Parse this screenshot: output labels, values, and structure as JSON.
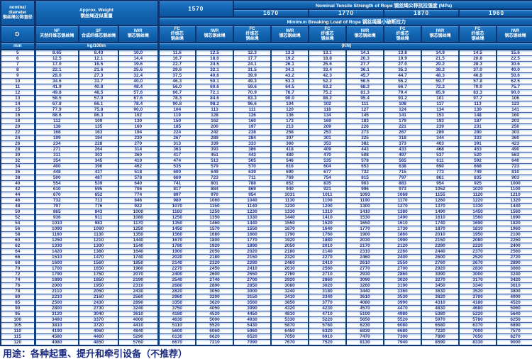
{
  "table": {
    "corner": {
      "nominal_diameter": "nominal\ndiameter\n钢丝绳公称直径",
      "d": "D",
      "mm": "mm"
    },
    "weight": {
      "title": "Approx. Weight\n钢丝绳近似重量",
      "unit": "kg/100m",
      "cols": [
        "NF\n天然纤维芯钢丝绳",
        "SF\n合成纤维芯钢丝绳",
        "IWR\n钢芯钢丝绳"
      ]
    },
    "strength": {
      "title": "Nominal Tensile Strength of Rope 钢丝绳公称抗拉强度 (MPa)",
      "breaking_title": "Minimun Breaking Load of Rope 钢丝绳最小破断拉力",
      "unit": "(KN)",
      "grades": [
        "1570",
        "1670",
        "1770",
        "1870",
        "1960"
      ],
      "pair": [
        "FC\n纤维芯\n钢丝绳",
        "IWR\n钢芯钢丝绳"
      ]
    },
    "columns": [
      "D mm",
      "NF kg/100m",
      "SF kg/100m",
      "IWR kg/100m",
      "1570 FC",
      "1570 IWR",
      "1670 FC",
      "1670 IWR",
      "1770 FC",
      "1770 IWR",
      "1870 FC",
      "1870 IWR",
      "1960 FC",
      "1960 IWR"
    ],
    "rows": [
      [
        "5",
        "8.65",
        "8.43",
        "10.0",
        "11.6",
        "12.5",
        "12.3",
        "13.3",
        "13.1",
        "14.1",
        "13.8",
        "14.9",
        "14.5",
        "15.6"
      ],
      [
        "6",
        "12.5",
        "12.1",
        "14.4",
        "16.7",
        "18.0",
        "17.7",
        "19.2",
        "18.8",
        "20.3",
        "19.9",
        "21.5",
        "20.8",
        "22.5"
      ],
      [
        "7",
        "17.0",
        "16.5",
        "19.6",
        "22.7",
        "24.5",
        "24.1",
        "26.1",
        "25.6",
        "27.7",
        "27.0",
        "29.2",
        "28.3",
        "30.6"
      ],
      [
        "8",
        "22.1",
        "21.6",
        "25.6",
        "29.6",
        "32.1",
        "31.5",
        "34.1",
        "33.4",
        "36.1",
        "35.3",
        "38.2",
        "37.0",
        "40.0"
      ],
      [
        "9",
        "28.0",
        "27.3",
        "32.4",
        "37.5",
        "40.6",
        "39.9",
        "43.2",
        "42.3",
        "45.7",
        "44.7",
        "48.3",
        "46.8",
        "50.6"
      ],
      [
        "10",
        "34.6",
        "33.7",
        "40.0",
        "46.3",
        "50.1",
        "49.3",
        "53.3",
        "52.2",
        "56.5",
        "55.2",
        "59.7",
        "57.8",
        "62.5"
      ],
      [
        "11",
        "41.9",
        "40.8",
        "48.4",
        "56.0",
        "60.6",
        "59.6",
        "64.5",
        "63.2",
        "68.3",
        "66.7",
        "72.2",
        "70.0",
        "75.7"
      ],
      [
        "12",
        "49.8",
        "48.5",
        "57.6",
        "66.7",
        "72.1",
        "70.9",
        "76.7",
        "75.2",
        "81.3",
        "79.4",
        "85.9",
        "83.3",
        "90.0"
      ],
      [
        "13",
        "58.5",
        "57.0",
        "67.6",
        "78.3",
        "84.6",
        "83.3",
        "90.0",
        "88.2",
        "95.4",
        "93.2",
        "101",
        "97.7",
        "106"
      ],
      [
        "14",
        "67.8",
        "66.1",
        "78.4",
        "90.8",
        "98.2",
        "96.6",
        "104",
        "102",
        "111",
        "108",
        "117",
        "113",
        "123"
      ],
      [
        "15",
        "77.9",
        "75.8",
        "90.0",
        "104",
        "113",
        "111",
        "120",
        "118",
        "127",
        "124",
        "134",
        "130",
        "141"
      ],
      [
        "16",
        "88.6",
        "86.3",
        "102",
        "119",
        "128",
        "126",
        "136",
        "134",
        "145",
        "141",
        "153",
        "148",
        "160"
      ],
      [
        "18",
        "112",
        "109",
        "130",
        "150",
        "162",
        "160",
        "173",
        "169",
        "183",
        "179",
        "193",
        "187",
        "203"
      ],
      [
        "20",
        "138",
        "135",
        "160",
        "185",
        "200",
        "197",
        "213",
        "209",
        "226",
        "221",
        "239",
        "231",
        "250"
      ],
      [
        "22",
        "168",
        "163",
        "194",
        "224",
        "242",
        "238",
        "258",
        "253",
        "273",
        "267",
        "289",
        "280",
        "303"
      ],
      [
        "24",
        "199",
        "194",
        "230",
        "267",
        "289",
        "284",
        "307",
        "301",
        "325",
        "318",
        "344",
        "333",
        "360"
      ],
      [
        "26",
        "234",
        "228",
        "270",
        "313",
        "339",
        "333",
        "360",
        "353",
        "382",
        "373",
        "403",
        "391",
        "423"
      ],
      [
        "28",
        "271",
        "264",
        "314",
        "363",
        "393",
        "386",
        "418",
        "409",
        "443",
        "433",
        "468",
        "453",
        "490"
      ],
      [
        "30",
        "311",
        "303",
        "360",
        "417",
        "451",
        "443",
        "480",
        "470",
        "508",
        "497",
        "537",
        "520",
        "563"
      ],
      [
        "32",
        "354",
        "345",
        "410",
        "474",
        "513",
        "505",
        "546",
        "535",
        "578",
        "565",
        "611",
        "592",
        "640"
      ],
      [
        "34",
        "400",
        "390",
        "462",
        "535",
        "579",
        "570",
        "616",
        "604",
        "653",
        "638",
        "690",
        "668",
        "723"
      ],
      [
        "36",
        "448",
        "437",
        "518",
        "600",
        "649",
        "639",
        "690",
        "677",
        "732",
        "715",
        "773",
        "749",
        "810"
      ],
      [
        "38",
        "500",
        "487",
        "578",
        "669",
        "723",
        "711",
        "769",
        "754",
        "815",
        "797",
        "861",
        "835",
        "903"
      ],
      [
        "40",
        "554",
        "539",
        "640",
        "741",
        "801",
        "788",
        "852",
        "835",
        "903",
        "883",
        "954",
        "925",
        "1000"
      ],
      [
        "42",
        "610",
        "595",
        "706",
        "817",
        "884",
        "869",
        "940",
        "921",
        "996",
        "973",
        "1052",
        "1020",
        "1100"
      ],
      [
        "44",
        "670",
        "652",
        "774",
        "897",
        "970",
        "954",
        "1031",
        "1011",
        "1093",
        "1068",
        "1155",
        "1120",
        "1210"
      ],
      [
        "46",
        "732",
        "713",
        "846",
        "980",
        "1060",
        "1040",
        "1130",
        "1100",
        "1190",
        "1170",
        "1260",
        "1220",
        "1320"
      ],
      [
        "48",
        "797",
        "776",
        "922",
        "1070",
        "1150",
        "1140",
        "1230",
        "1200",
        "1300",
        "1270",
        "1370",
        "1330",
        "1440"
      ],
      [
        "50",
        "865",
        "843",
        "1000",
        "1160",
        "1250",
        "1230",
        "1330",
        "1310",
        "1410",
        "1380",
        "1490",
        "1450",
        "1560"
      ],
      [
        "52",
        "936",
        "911",
        "1080",
        "1250",
        "1350",
        "1330",
        "1440",
        "1410",
        "1530",
        "1490",
        "1610",
        "1560",
        "1690"
      ],
      [
        "54",
        "1010",
        "983",
        "1170",
        "1350",
        "1460",
        "1440",
        "1550",
        "1520",
        "1650",
        "1610",
        "1740",
        "1690",
        "1820"
      ],
      [
        "56",
        "1090",
        "1060",
        "1250",
        "1450",
        "1570",
        "1550",
        "1670",
        "1640",
        "1770",
        "1730",
        "1870",
        "1810",
        "1960"
      ],
      [
        "58",
        "1160",
        "1130",
        "1350",
        "1560",
        "1680",
        "1660",
        "1790",
        "1760",
        "1900",
        "1860",
        "2010",
        "1950",
        "2100"
      ],
      [
        "60",
        "1250",
        "1210",
        "1440",
        "1670",
        "1800",
        "1770",
        "1920",
        "1880",
        "2030",
        "1990",
        "2150",
        "2080",
        "2250"
      ],
      [
        "62",
        "1330",
        "1300",
        "1540",
        "1780",
        "1920",
        "1890",
        "2050",
        "2010",
        "2170",
        "2120",
        "2290",
        "2220",
        "2400"
      ],
      [
        "64",
        "1420",
        "1380",
        "1640",
        "1900",
        "2050",
        "2020",
        "2180",
        "2140",
        "2310",
        "2260",
        "2440",
        "2370",
        "2560"
      ],
      [
        "66",
        "1510",
        "1470",
        "1740",
        "2020",
        "2180",
        "2150",
        "2320",
        "2270",
        "2460",
        "2400",
        "2600",
        "2520",
        "2720"
      ],
      [
        "68",
        "1600",
        "1560",
        "1850",
        "2140",
        "2320",
        "2280",
        "2460",
        "2410",
        "2610",
        "2550",
        "2760",
        "2670",
        "2890"
      ],
      [
        "70",
        "1700",
        "1650",
        "1960",
        "2270",
        "2450",
        "2410",
        "2610",
        "2560",
        "2770",
        "2700",
        "2920",
        "2830",
        "3060"
      ],
      [
        "72",
        "1790",
        "1750",
        "2070",
        "2400",
        "2600",
        "2550",
        "2760",
        "2710",
        "2930",
        "2860",
        "3090",
        "3000",
        "3240"
      ],
      [
        "74",
        "1890",
        "1850",
        "2190",
        "2540",
        "2740",
        "2700",
        "2920",
        "2860",
        "3090",
        "3020",
        "3270",
        "3170",
        "3420"
      ],
      [
        "76",
        "2000",
        "1950",
        "2310",
        "2680",
        "2890",
        "2850",
        "3080",
        "3020",
        "3260",
        "3190",
        "3450",
        "3340",
        "3610"
      ],
      [
        "78",
        "2110",
        "2050",
        "2430",
        "2820",
        "3050",
        "3000",
        "3240",
        "3180",
        "3440",
        "3360",
        "3630",
        "3520",
        "3800"
      ],
      [
        "80",
        "2210",
        "2160",
        "2560",
        "2960",
        "3200",
        "3150",
        "3410",
        "3340",
        "3610",
        "3530",
        "3820",
        "3700",
        "4000"
      ],
      [
        "85",
        "2500",
        "2430",
        "2890",
        "3350",
        "3620",
        "3560",
        "3850",
        "3770",
        "4080",
        "3990",
        "4310",
        "4180",
        "4520"
      ],
      [
        "90",
        "2800",
        "2730",
        "3240",
        "3750",
        "4050",
        "3990",
        "4320",
        "4230",
        "4570",
        "4470",
        "4830",
        "4680",
        "5060"
      ],
      [
        "95",
        "3120",
        "3040",
        "3610",
        "4180",
        "4520",
        "4450",
        "4810",
        "4710",
        "5100",
        "4980",
        "5380",
        "5220",
        "5640"
      ],
      [
        "100",
        "3460",
        "3370",
        "4000",
        "4630",
        "5000",
        "4930",
        "5330",
        "5220",
        "5650",
        "5520",
        "5970",
        "5780",
        "6250"
      ],
      [
        "105",
        "3810",
        "3720",
        "4410",
        "5110",
        "5520",
        "5430",
        "5870",
        "5760",
        "6230",
        "6080",
        "6580",
        "6370",
        "6890"
      ],
      [
        "110",
        "4190",
        "4060",
        "4840",
        "5600",
        "6060",
        "5960",
        "6450",
        "6320",
        "6830",
        "6680",
        "7220",
        "7000",
        "7570"
      ],
      [
        "115",
        "4580",
        "4460",
        "5290",
        "6130",
        "6620",
        "6520",
        "7050",
        "6910",
        "7470",
        "7300",
        "7890",
        "7650",
        "8270"
      ],
      [
        "120",
        "4980",
        "4850",
        "5760",
        "6670",
        "7210",
        "7090",
        "7670",
        "7520",
        "8130",
        "7940",
        "8590",
        "8330",
        "9000"
      ]
    ]
  },
  "footer": {
    "usage": "用途：各种起重、提升和牵引设备（不推荐）"
  },
  "colors": {
    "header_blue": "#1263ae",
    "border_navy": "#0b3470",
    "cell_text": "#213284",
    "row_strip": "#b7d3ec"
  }
}
